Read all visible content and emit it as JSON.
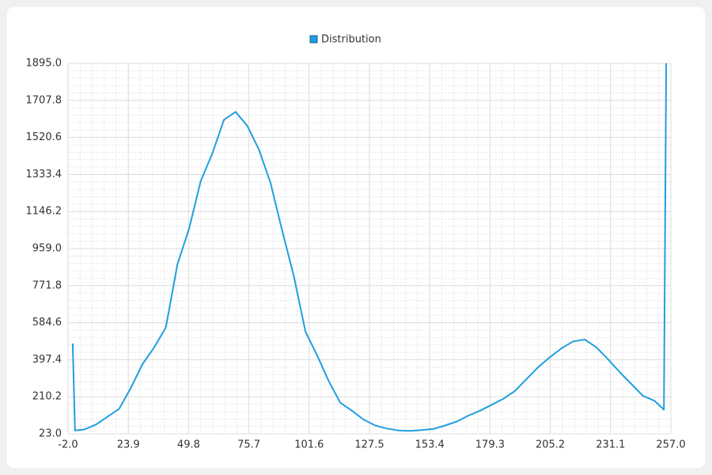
{
  "chart_data": {
    "type": "line",
    "legend": "top",
    "grid": true,
    "series": [
      {
        "name": "Distribution",
        "color": "#209fdf",
        "x": [
          0,
          1,
          5,
          10,
          15,
          20,
          25,
          30,
          35,
          40,
          45,
          50,
          55,
          60,
          65,
          70,
          75,
          80,
          85,
          90,
          95,
          100,
          105,
          110,
          115,
          120,
          125,
          130,
          135,
          140,
          145,
          150,
          155,
          160,
          165,
          170,
          175,
          180,
          185,
          190,
          195,
          200,
          205,
          210,
          215,
          220,
          225,
          230,
          235,
          240,
          245,
          250,
          254,
          255
        ],
        "values": [
          480,
          40,
          45,
          70,
          110,
          150,
          255,
          375,
          460,
          560,
          880,
          1060,
          1300,
          1440,
          1610,
          1650,
          1580,
          1460,
          1290,
          1050,
          820,
          540,
          420,
          290,
          180,
          140,
          95,
          65,
          50,
          40,
          38,
          42,
          48,
          65,
          85,
          115,
          140,
          170,
          200,
          240,
          300,
          360,
          410,
          455,
          490,
          500,
          460,
          400,
          335,
          275,
          215,
          190,
          145,
          1895
        ]
      }
    ],
    "xlim": [
      -2.0,
      257.0
    ],
    "xticks": [
      {
        "value": -2.0,
        "label": "-2.0"
      },
      23.9,
      49.8,
      75.7,
      101.6,
      127.5,
      153.4,
      179.3,
      205.2,
      231.1,
      {
        "value": 257.0,
        "label": "257.0"
      }
    ],
    "ylim": [
      23.0,
      1895.0
    ],
    "yticks": [
      {
        "value": 23.0,
        "label": "23.0"
      },
      210.2,
      397.4,
      584.6,
      771.8,
      {
        "value": 959.0,
        "label": "959.0"
      },
      1146.2,
      1333.4,
      1520.6,
      1707.8,
      {
        "value": 1895.0,
        "label": "1895.0"
      }
    ]
  }
}
